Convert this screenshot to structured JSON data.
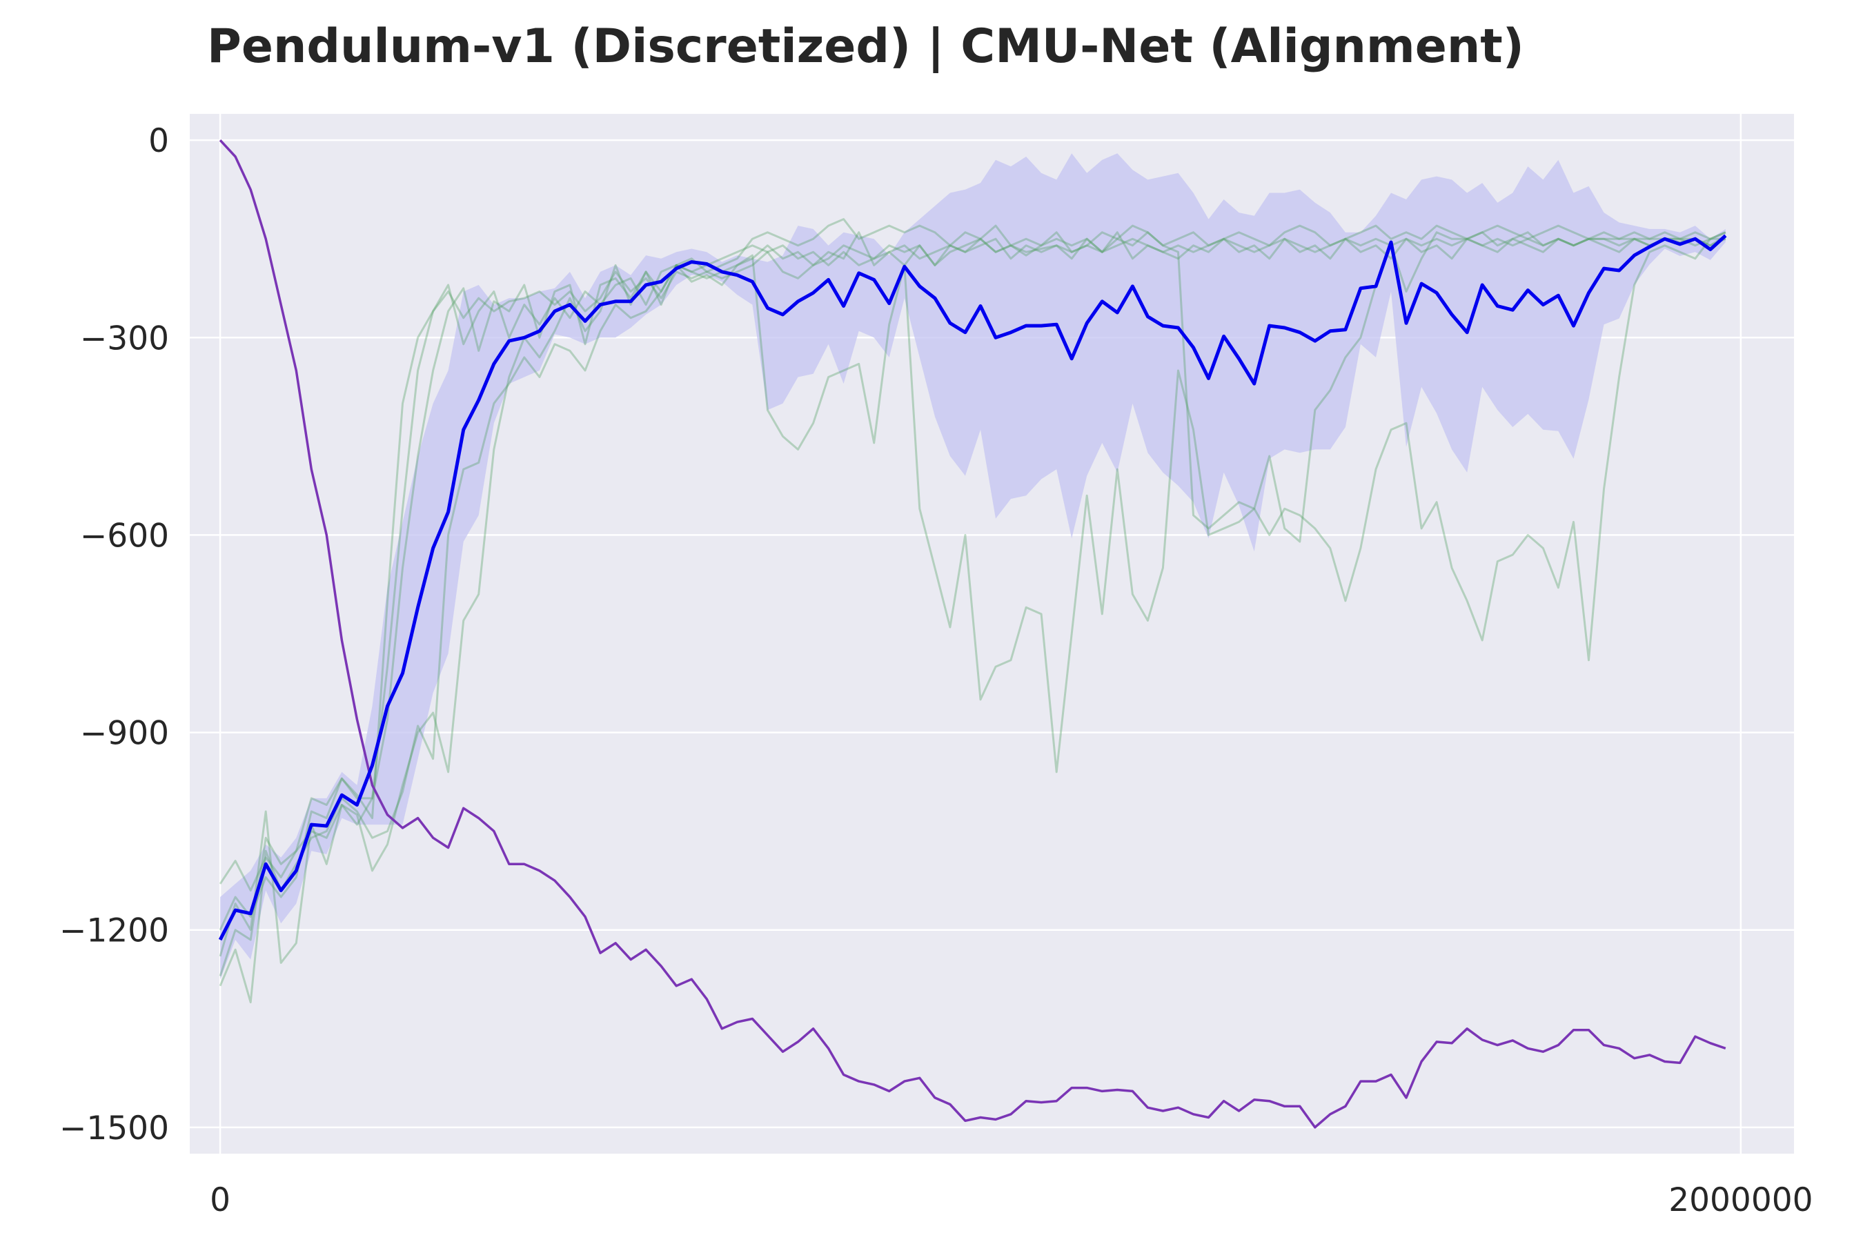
{
  "chart_data": {
    "type": "line",
    "title": "Pendulum-v1 (Discretized) | CMU-Net (Alignment)",
    "xlabel": "",
    "ylabel": "",
    "xlim": [
      -40000,
      2070000
    ],
    "ylim": [
      -1540,
      40
    ],
    "x_ticks": [
      0,
      2000000
    ],
    "x_tick_labels": [
      "0",
      "2000000"
    ],
    "y_ticks": [
      0,
      -300,
      -600,
      -900,
      -1200,
      -1500
    ],
    "y_tick_labels": [
      "0",
      "−300",
      "−600",
      "−900",
      "−1200",
      "−1500"
    ],
    "grid": true,
    "legend": "none",
    "colors": {
      "background": "#eaeaf2",
      "grid": "#ffffff",
      "mean": "#0000ee",
      "band": "#c4c4f2",
      "runs": "#4e9e5e",
      "reference": "#7a35b5"
    },
    "x_step": 20000,
    "series": [
      {
        "role": "mean",
        "values": [
          -1215,
          -1170,
          -1175,
          -1100,
          -1140,
          -1110,
          -1040,
          -1042,
          -995,
          -1010,
          -950,
          -860,
          -810,
          -710,
          -620,
          -565,
          -440,
          -395,
          -340,
          -305,
          -300,
          -290,
          -260,
          -250,
          -275,
          -250,
          -245,
          -245,
          -220,
          -215,
          -195,
          -185,
          -188,
          -200,
          -205,
          -215,
          -255,
          -265,
          -245,
          -232,
          -212,
          -252,
          -202,
          -212,
          -248,
          -192,
          -222,
          -240,
          -278,
          -292,
          -252,
          -300,
          -292,
          -282,
          -282,
          -280,
          -332,
          -278,
          -245,
          -262,
          -222,
          -268,
          -282,
          -285,
          -315,
          -362,
          -298,
          -332,
          -370,
          -282,
          -285,
          -292,
          -305,
          -290,
          -288,
          -225,
          -222,
          -155,
          -278,
          -218,
          -232,
          -265,
          -292,
          -220,
          -252,
          -258,
          -228,
          -250,
          -236,
          -282,
          -232,
          -195,
          -198,
          -175,
          -162,
          -150,
          -158,
          -150,
          -166,
          -145
        ]
      },
      {
        "role": "band_upper",
        "values": [
          -1150,
          -1130,
          -1110,
          -1070,
          -1090,
          -1060,
          -1000,
          -1000,
          -960,
          -980,
          -860,
          -680,
          -580,
          -480,
          -400,
          -350,
          -230,
          -220,
          -250,
          -240,
          -240,
          -230,
          -225,
          -200,
          -240,
          -200,
          -190,
          -205,
          -175,
          -180,
          -170,
          -165,
          -170,
          -185,
          -175,
          -180,
          -185,
          -175,
          -130,
          -135,
          -160,
          -140,
          -145,
          -150,
          -175,
          -140,
          -120,
          -100,
          -80,
          -75,
          -65,
          -30,
          -40,
          -25,
          -50,
          -60,
          -20,
          -50,
          -30,
          -20,
          -45,
          -60,
          -55,
          -50,
          -80,
          -120,
          -90,
          -110,
          -115,
          -80,
          -80,
          -75,
          -95,
          -110,
          -140,
          -140,
          -115,
          -80,
          -90,
          -60,
          -55,
          -60,
          -80,
          -65,
          -95,
          -80,
          -40,
          -60,
          -30,
          -80,
          -70,
          -110,
          -125,
          -130,
          -135,
          -135,
          -140,
          -130,
          -150,
          -135
        ]
      },
      {
        "role": "band_lower",
        "values": [
          -1275,
          -1215,
          -1245,
          -1140,
          -1190,
          -1160,
          -1080,
          -1085,
          -1030,
          -1040,
          -1040,
          -1040,
          -1040,
          -940,
          -840,
          -780,
          -610,
          -570,
          -430,
          -370,
          -360,
          -350,
          -295,
          -300,
          -310,
          -300,
          -300,
          -285,
          -265,
          -250,
          -220,
          -205,
          -205,
          -215,
          -235,
          -250,
          -410,
          -400,
          -360,
          -355,
          -310,
          -370,
          -290,
          -300,
          -330,
          -240,
          -330,
          -420,
          -480,
          -510,
          -440,
          -575,
          -545,
          -540,
          -515,
          -500,
          -605,
          -510,
          -460,
          -505,
          -400,
          -475,
          -505,
          -525,
          -550,
          -605,
          -505,
          -555,
          -625,
          -484,
          -470,
          -475,
          -470,
          -470,
          -436,
          -310,
          -330,
          -230,
          -466,
          -375,
          -415,
          -470,
          -505,
          -375,
          -410,
          -436,
          -416,
          -440,
          -442,
          -484,
          -394,
          -280,
          -271,
          -220,
          -189,
          -165,
          -176,
          -170,
          -182,
          -155
        ]
      },
      {
        "role": "run",
        "values": [
          -1130,
          -1095,
          -1140,
          -1090,
          -1120,
          -1080,
          -1000,
          -1010,
          -970,
          -995,
          -1030,
          -700,
          -400,
          -300,
          -260,
          -230,
          -270,
          -240,
          -260,
          -245,
          -240,
          -230,
          -250,
          -230,
          -260,
          -240,
          -200,
          -230,
          -210,
          -240,
          -200,
          -210,
          -200,
          -210,
          -200,
          -190,
          -170,
          -160,
          -180,
          -170,
          -190,
          -170,
          -190,
          -180,
          -170,
          -160,
          -180,
          -170,
          -160,
          -170,
          -160,
          -150,
          -180,
          -160,
          -170,
          -160,
          -170,
          -160,
          -170,
          -160,
          -150,
          -160,
          -170,
          -160,
          -170,
          -160,
          -150,
          -160,
          -170,
          -160,
          -150,
          -160,
          -170,
          -160,
          -150,
          -160,
          -150,
          -160,
          -150,
          -160,
          -150,
          -160,
          -150,
          -160,
          -150,
          -160,
          -150,
          -160,
          -150,
          -160,
          -150,
          -150,
          -160,
          -150,
          -160,
          -150,
          -150,
          -150,
          -160,
          -150
        ]
      },
      {
        "role": "run",
        "values": [
          -1270,
          -1200,
          -1215,
          -1060,
          -1100,
          -1080,
          -1050,
          -1060,
          -1010,
          -1040,
          -1000,
          -880,
          -650,
          -480,
          -350,
          -260,
          -225,
          -320,
          -245,
          -260,
          -220,
          -300,
          -230,
          -220,
          -310,
          -220,
          -210,
          -240,
          -200,
          -230,
          -190,
          -215,
          -205,
          -220,
          -190,
          -175,
          -410,
          -450,
          -470,
          -430,
          -360,
          -350,
          -340,
          -460,
          -280,
          -190,
          -560,
          -650,
          -740,
          -600,
          -850,
          -800,
          -790,
          -710,
          -720,
          -960,
          -750,
          -540,
          -720,
          -500,
          -690,
          -730,
          -650,
          -350,
          -440,
          -600,
          -590,
          -580,
          -560,
          -480,
          -590,
          -610,
          -410,
          -380,
          -330,
          -300,
          -220,
          -160,
          -230,
          -180,
          -140,
          -150,
          -150,
          -140,
          -160,
          -150,
          -140,
          -160,
          -150,
          -160,
          -150,
          -150,
          -150,
          -150,
          -150,
          -150,
          -155,
          -150,
          -160,
          -145
        ]
      },
      {
        "role": "run",
        "values": [
          -1240,
          -1160,
          -1200,
          -1020,
          -1250,
          -1220,
          -1040,
          -1100,
          -1010,
          -1025,
          -1110,
          -1070,
          -980,
          -900,
          -870,
          -960,
          -730,
          -690,
          -470,
          -360,
          -300,
          -330,
          -290,
          -240,
          -290,
          -260,
          -190,
          -250,
          -200,
          -250,
          -190,
          -200,
          -210,
          -200,
          -190,
          -180,
          -160,
          -180,
          -170,
          -190,
          -180,
          -160,
          -170,
          -180,
          -160,
          -170,
          -160,
          -190,
          -160,
          -170,
          -150,
          -170,
          -160,
          -170,
          -165,
          -160,
          -180,
          -150,
          -170,
          -140,
          -180,
          -160,
          -170,
          -180,
          -160,
          -170,
          -150,
          -170,
          -160,
          -180,
          -150,
          -170,
          -160,
          -180,
          -150,
          -170,
          -160,
          -180,
          -150,
          -170,
          -160,
          -180,
          -150,
          -160,
          -170,
          -150,
          -160,
          -170,
          -150,
          -160,
          -150,
          -160,
          -170,
          -150,
          -160,
          -150,
          -150,
          -160,
          -150,
          -150
        ]
      },
      {
        "role": "run",
        "values": [
          -1285,
          -1230,
          -1310,
          -1080,
          -1140,
          -1100,
          -1060,
          -1050,
          -1000,
          -1020,
          -1060,
          -1050,
          -990,
          -890,
          -940,
          -600,
          -500,
          -490,
          -400,
          -370,
          -330,
          -360,
          -310,
          -320,
          -350,
          -290,
          -250,
          -270,
          -260,
          -230,
          -190,
          -200,
          -190,
          -180,
          -170,
          -160,
          -170,
          -200,
          -210,
          -190,
          -170,
          -180,
          -140,
          -190,
          -170,
          -190,
          -160,
          -190,
          -170,
          -160,
          -150,
          -170,
          -160,
          -175,
          -160,
          -150,
          -160,
          -150,
          -170,
          -150,
          -160,
          -140,
          -160,
          -170,
          -570,
          -590,
          -570,
          -550,
          -560,
          -600,
          -560,
          -570,
          -590,
          -620,
          -700,
          -620,
          -500,
          -440,
          -430,
          -590,
          -550,
          -650,
          -700,
          -760,
          -640,
          -630,
          -600,
          -620,
          -680,
          -580,
          -790,
          -530,
          -360,
          -220,
          -170,
          -160,
          -170,
          -180,
          -150,
          -140
        ]
      },
      {
        "role": "run",
        "values": [
          -1200,
          -1150,
          -1180,
          -1120,
          -1150,
          -1120,
          -1020,
          -1030,
          -970,
          -1000,
          -1000,
          -800,
          -560,
          -350,
          -260,
          -220,
          -310,
          -260,
          -230,
          -300,
          -250,
          -280,
          -240,
          -270,
          -230,
          -250,
          -220,
          -210,
          -250,
          -200,
          -190,
          -180,
          -200,
          -190,
          -180,
          -150,
          -140,
          -150,
          -160,
          -150,
          -130,
          -120,
          -150,
          -140,
          -130,
          -140,
          -130,
          -140,
          -160,
          -140,
          -150,
          -130,
          -160,
          -150,
          -160,
          -140,
          -170,
          -160,
          -140,
          -150,
          -130,
          -140,
          -160,
          -150,
          -140,
          -160,
          -150,
          -140,
          -150,
          -160,
          -140,
          -130,
          -140,
          -160,
          -150,
          -140,
          -130,
          -150,
          -140,
          -150,
          -130,
          -140,
          -150,
          -140,
          -130,
          -140,
          -150,
          -140,
          -130,
          -140,
          -150,
          -140,
          -150,
          -140,
          -150,
          -140,
          -150,
          -140,
          -150,
          -140
        ]
      },
      {
        "role": "reference",
        "values": [
          0,
          -25,
          -75,
          -150,
          -250,
          -350,
          -500,
          -600,
          -760,
          -880,
          -980,
          -1025,
          -1045,
          -1030,
          -1060,
          -1075,
          -1015,
          -1030,
          -1050,
          -1100,
          -1100,
          -1110,
          -1125,
          -1150,
          -1180,
          -1235,
          -1220,
          -1245,
          -1230,
          -1255,
          -1285,
          -1275,
          -1305,
          -1350,
          -1340,
          -1335,
          -1360,
          -1385,
          -1370,
          -1350,
          -1380,
          -1420,
          -1430,
          -1435,
          -1445,
          -1430,
          -1425,
          -1455,
          -1465,
          -1490,
          -1485,
          -1488,
          -1480,
          -1460,
          -1462,
          -1460,
          -1440,
          -1440,
          -1445,
          -1443,
          -1445,
          -1470,
          -1475,
          -1470,
          -1480,
          -1485,
          -1460,
          -1475,
          -1458,
          -1460,
          -1468,
          -1468,
          -1500,
          -1480,
          -1468,
          -1430,
          -1430,
          -1420,
          -1455,
          -1400,
          -1370,
          -1372,
          -1350,
          -1367,
          -1375,
          -1368,
          -1380,
          -1385,
          -1375,
          -1352,
          -1352,
          -1375,
          -1380,
          -1395,
          -1390,
          -1400,
          -1402,
          -1362,
          -1372,
          -1380
        ]
      }
    ]
  }
}
